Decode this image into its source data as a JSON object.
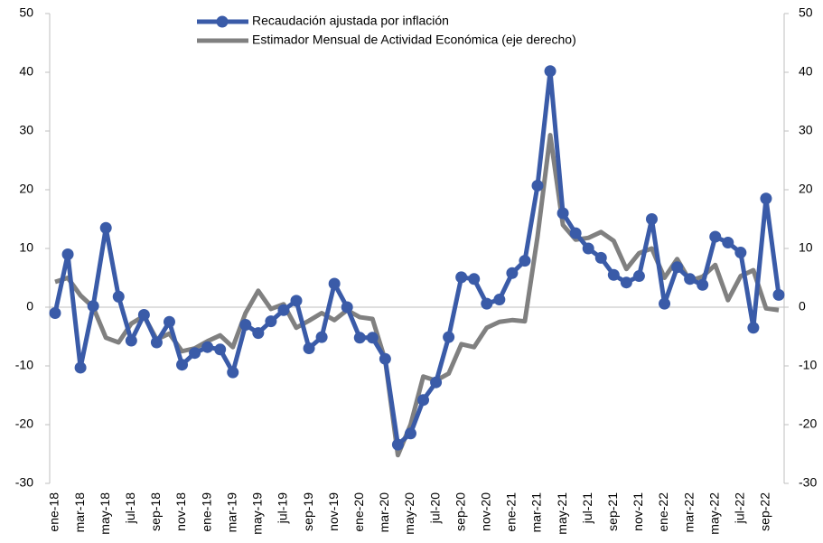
{
  "chart_data": {
    "type": "line",
    "categories": [
      "ene-18",
      null,
      "mar-18",
      null,
      "may-18",
      null,
      "jul-18",
      null,
      "sep-18",
      null,
      "nov-18",
      null,
      "ene-19",
      null,
      "mar-19",
      null,
      "may-19",
      null,
      "jul-19",
      null,
      "sep-19",
      null,
      "nov-19",
      null,
      "ene-20",
      null,
      "mar-20",
      null,
      "may-20",
      null,
      "jul-20",
      null,
      "sep-20",
      null,
      "nov-20",
      null,
      "ene-21",
      null,
      "mar-21",
      null,
      "may-21",
      null,
      "jul-21",
      null,
      "sep-21",
      null,
      "nov-21",
      null,
      "ene-22",
      null,
      "mar-22",
      null,
      "may-22",
      null,
      "jul-22",
      null,
      "sep-22",
      null
    ],
    "series": [
      {
        "name": "Recaudación ajustada por inflación",
        "color": "#3a5ba8",
        "marker": true,
        "values": [
          -1,
          9,
          -10.3,
          0.2,
          13.5,
          1.8,
          -5.7,
          -1.3,
          -6,
          -2.5,
          -9.8,
          -7.8,
          -6.8,
          -7.2,
          -11.1,
          -3,
          -4.4,
          -2.4,
          -0.5,
          1.1,
          -7,
          -5.1,
          4,
          0,
          -5.2,
          -5.2,
          -8.8,
          -23.4,
          -21.5,
          -15.8,
          -12.8,
          -5.1,
          5.1,
          4.8,
          0.6,
          1.3,
          5.8,
          7.9,
          20.7,
          40.2,
          16,
          12.6,
          10,
          8.4,
          5.5,
          4.2,
          5.3,
          15,
          0.6,
          6.8,
          4.8,
          3.8,
          12,
          11,
          9.3,
          -3.5,
          18.5,
          2.1
        ]
      },
      {
        "name": "Estimador Mensual de Actividad Económica (eje derecho)",
        "color": "#808080",
        "axis": "y2",
        "marker": false,
        "values": [
          4.3,
          5,
          2,
          0,
          -5.2,
          -6,
          -2.8,
          -1.5,
          -5.5,
          -4.5,
          -7.5,
          -7,
          -5.8,
          -4.8,
          -6.8,
          -1,
          2.8,
          -0.3,
          0.5,
          -3.5,
          -2.3,
          -1,
          -2.2,
          -0.5,
          -1.7,
          -2,
          -9,
          -25.2,
          -20,
          -11.8,
          -12.5,
          -11.3,
          -6.3,
          -6.8,
          -3.5,
          -2.5,
          -2.2,
          -2.4,
          12,
          29.3,
          14,
          11.5,
          11.8,
          12.8,
          11.3,
          6.5,
          9.2,
          10,
          5,
          8.2,
          4.5,
          5.2,
          7.2,
          1.2,
          5.3,
          6.3,
          -0.2,
          -0.5
        ]
      }
    ],
    "ylim": [
      -30,
      50
    ],
    "yticks": [
      -30,
      -20,
      -10,
      0,
      10,
      20,
      30,
      40,
      50
    ],
    "y2lim": [
      -30,
      50
    ],
    "y2ticks": [
      -30,
      -20,
      -10,
      0,
      10,
      20,
      30,
      40,
      50
    ],
    "grid": false,
    "legend": "top"
  }
}
